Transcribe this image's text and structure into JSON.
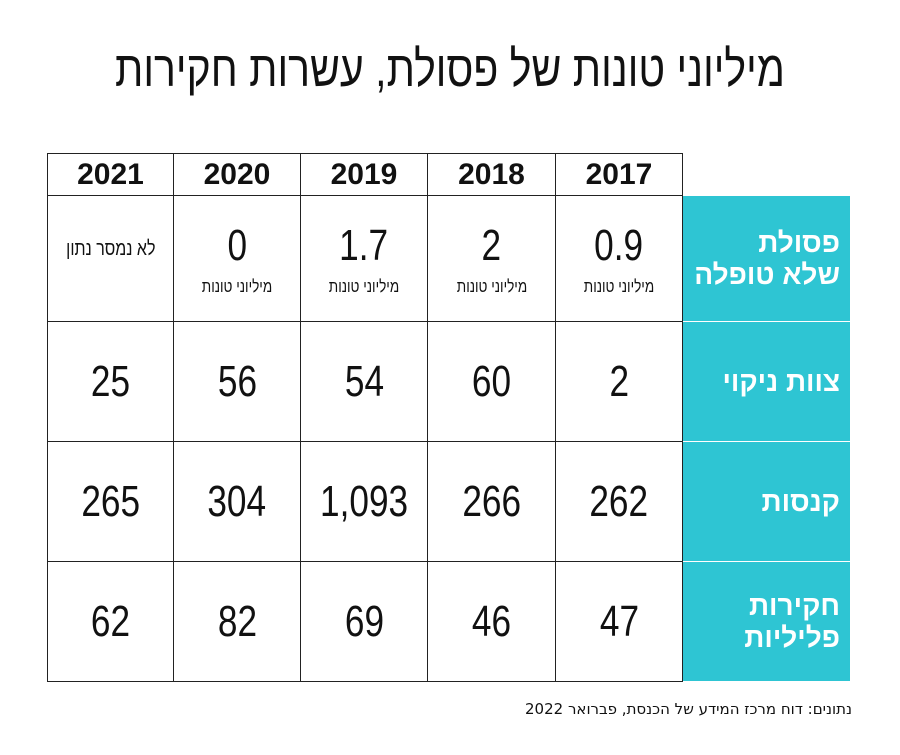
{
  "title": "מיליוני טונות של פסולת, עשרות חקירות",
  "years": [
    "2021",
    "2020",
    "2019",
    "2018",
    "2017"
  ],
  "rows": [
    {
      "label": [
        "פסולת",
        "שלא טופלה"
      ],
      "values": [
        "לא נמסר נתון",
        "0",
        "1.7",
        "2",
        "0.9"
      ],
      "unit": "מיליוני טונות"
    },
    {
      "label": [
        "צוות ניקוי"
      ],
      "values": [
        "25",
        "56",
        "54",
        "60",
        "2"
      ]
    },
    {
      "label": [
        "קנסות"
      ],
      "values": [
        "265",
        "304",
        "1,093",
        "266",
        "262"
      ]
    },
    {
      "label": [
        "חקירות",
        "פליליות"
      ],
      "values": [
        "62",
        "82",
        "69",
        "46",
        "47"
      ]
    }
  ],
  "source": "נתונים: דוח מרכז המידע של הכנסת, פברואר 2022",
  "colors": {
    "label_bg": "#2ec5d3"
  }
}
